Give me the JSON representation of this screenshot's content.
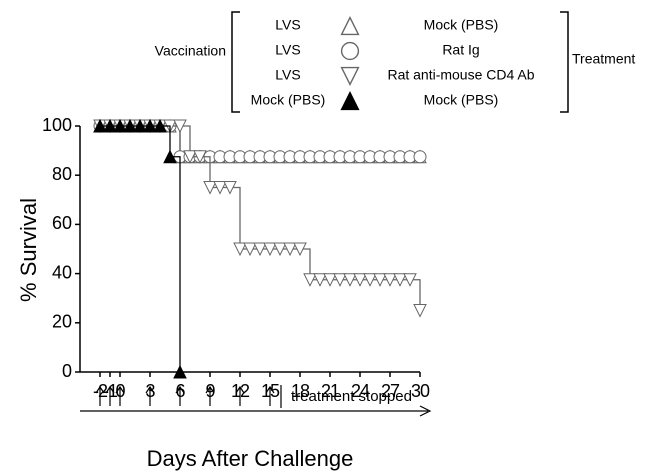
{
  "chart_data": {
    "type": "line",
    "y_label": "% Survival",
    "x_label": "Days After Challenge",
    "vaccination_label": "Vaccination",
    "treatment_label": "Treatment",
    "annotation": "treatment stopped",
    "treatment_days": [
      -2,
      -1,
      0,
      3,
      6,
      9,
      12,
      15
    ],
    "xlim": [
      -4,
      30
    ],
    "ylim": [
      0,
      100
    ],
    "xticks": [
      -2,
      -1,
      0,
      3,
      6,
      9,
      12,
      15,
      18,
      21,
      24,
      27,
      30
    ],
    "yticks": [
      0,
      20,
      40,
      60,
      80,
      100
    ],
    "x": [
      -2,
      -1,
      0,
      1,
      2,
      3,
      4,
      5,
      6,
      7,
      8,
      9,
      10,
      11,
      12,
      13,
      14,
      15,
      16,
      17,
      18,
      19,
      20,
      21,
      22,
      23,
      24,
      25,
      26,
      27,
      28,
      29,
      30
    ],
    "series": [
      {
        "vaccination": "LVS",
        "treatment": "Mock (PBS)",
        "marker": "triangle-up-open",
        "color": "#666666",
        "values": [
          100,
          100,
          100,
          100,
          100,
          100,
          100,
          100,
          87.5,
          87.5,
          87.5,
          87.5,
          87.5,
          87.5,
          87.5,
          87.5,
          87.5,
          87.5,
          87.5,
          87.5,
          87.5,
          87.5,
          87.5,
          87.5,
          87.5,
          87.5,
          87.5,
          87.5,
          87.5,
          87.5,
          87.5,
          87.5,
          87.5
        ]
      },
      {
        "vaccination": "LVS",
        "treatment": "Rat Ig",
        "marker": "circle-open",
        "color": "#666666",
        "values": [
          100,
          100,
          100,
          100,
          100,
          100,
          100,
          100,
          87.5,
          87.5,
          87.5,
          87.5,
          87.5,
          87.5,
          87.5,
          87.5,
          87.5,
          87.5,
          87.5,
          87.5,
          87.5,
          87.5,
          87.5,
          87.5,
          87.5,
          87.5,
          87.5,
          87.5,
          87.5,
          87.5,
          87.5,
          87.5,
          87.5
        ]
      },
      {
        "vaccination": "LVS",
        "treatment": "Rat anti-mouse CD4 Ab",
        "marker": "triangle-down-open",
        "color": "#666666",
        "values": [
          100,
          100,
          100,
          100,
          100,
          100,
          100,
          100,
          100,
          87.5,
          87.5,
          75,
          75,
          75,
          50,
          50,
          50,
          50,
          50,
          50,
          50,
          37.5,
          37.5,
          37.5,
          37.5,
          37.5,
          37.5,
          37.5,
          37.5,
          37.5,
          37.5,
          37.5,
          25
        ]
      },
      {
        "vaccination": "Mock (PBS)",
        "treatment": "Mock (PBS)",
        "marker": "triangle-up-filled",
        "color": "#000000",
        "values": [
          100,
          100,
          100,
          100,
          100,
          100,
          100,
          87.5,
          0,
          null,
          null,
          null,
          null,
          null,
          null,
          null,
          null,
          null,
          null,
          null,
          null,
          null,
          null,
          null,
          null,
          null,
          null,
          null,
          null,
          null,
          null,
          null,
          null
        ]
      }
    ]
  }
}
